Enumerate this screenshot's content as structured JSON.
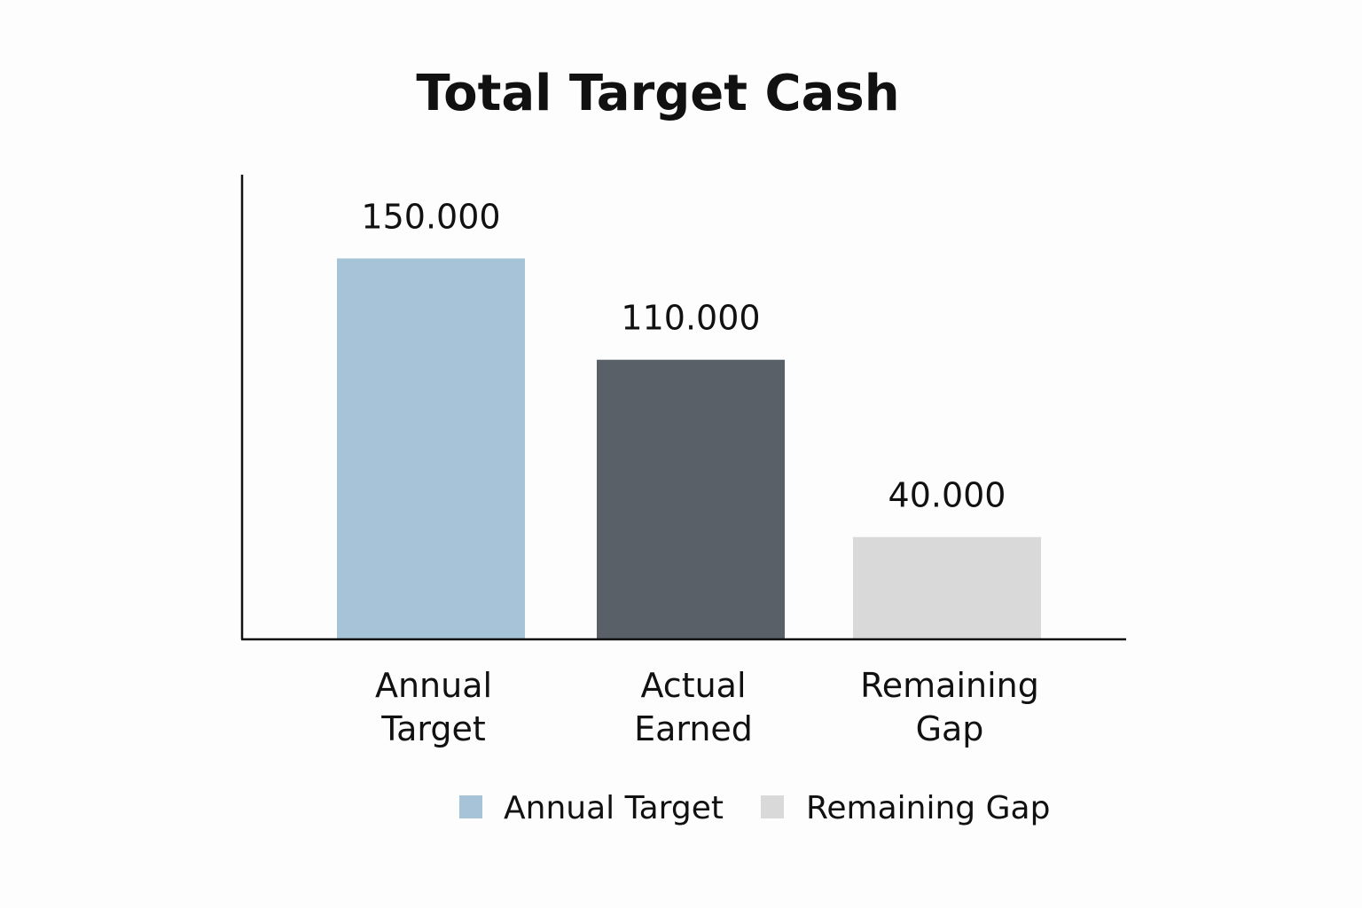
{
  "chart_data": {
    "type": "bar",
    "title": "Total Target Cash",
    "xlabel": "",
    "ylabel": "",
    "categories": [
      "Annual Target",
      "Actual Earned",
      "Remaining Gap"
    ],
    "category_lines": [
      [
        "Annual",
        "Target"
      ],
      [
        "Actual",
        "Earned"
      ],
      [
        "Remaining",
        "Gap"
      ]
    ],
    "values": [
      150000,
      110000,
      40000
    ],
    "value_labels": [
      "150.000",
      "110.000",
      "40.000"
    ],
    "bar_colors": [
      "#a7c3d7",
      "#5a6068",
      "#d9d9d9"
    ],
    "ylim": [
      0,
      182000
    ],
    "y_axis_ticks": false,
    "grid": false,
    "legend": {
      "placement": "bottom",
      "entries": [
        {
          "label": "Annual Target",
          "color": "#a7c3d7"
        },
        {
          "label": "Remaining Gap",
          "color": "#d9d9d9"
        }
      ]
    }
  }
}
